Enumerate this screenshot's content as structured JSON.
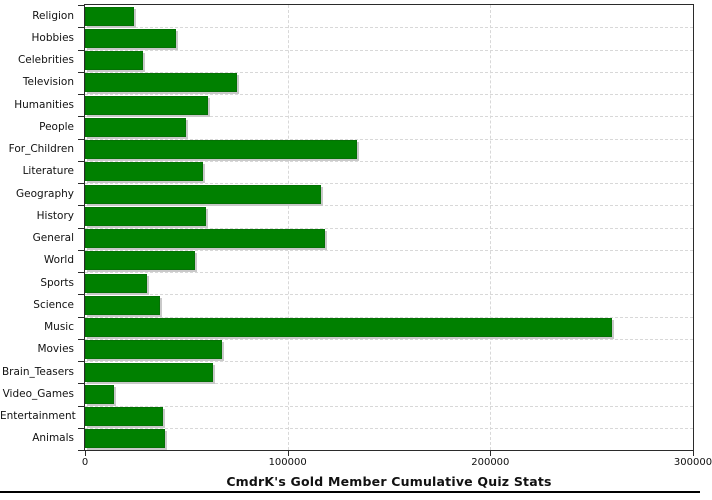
{
  "chart_data": {
    "type": "bar",
    "orientation": "horizontal",
    "title": "CmdrK's Gold Member Cumulative Quiz Stats",
    "categories": [
      "Religion",
      "Hobbies",
      "Celebrities",
      "Television",
      "Humanities",
      "People",
      "For_Children",
      "Literature",
      "Geography",
      "History",
      "General",
      "World",
      "Sports",
      "Science",
      "Music",
      "Movies",
      "Brain_Teasers",
      "Video_Games",
      "Entertainment",
      "Animals"
    ],
    "values": [
      24300,
      45000,
      28700,
      75000,
      60800,
      49700,
      134300,
      58100,
      116400,
      59800,
      118200,
      54300,
      30400,
      37100,
      260200,
      67600,
      63200,
      14100,
      38400,
      39700
    ],
    "xlabel": "",
    "ylabel": "",
    "xlim": [
      0,
      300000
    ],
    "x_ticks": [
      0,
      100000,
      200000,
      300000
    ],
    "x_tick_labels": [
      "0",
      "100000",
      "200000",
      "300000"
    ],
    "grid": true,
    "legend": "none",
    "colors": {
      "bar": "#008000",
      "bar_shadow": "#c9c9c9",
      "gridline": "#d8d8d8",
      "frame": "#2b2b2b",
      "text": "#111111",
      "background": "#ffffff",
      "bottom_rule": "#000000"
    }
  }
}
